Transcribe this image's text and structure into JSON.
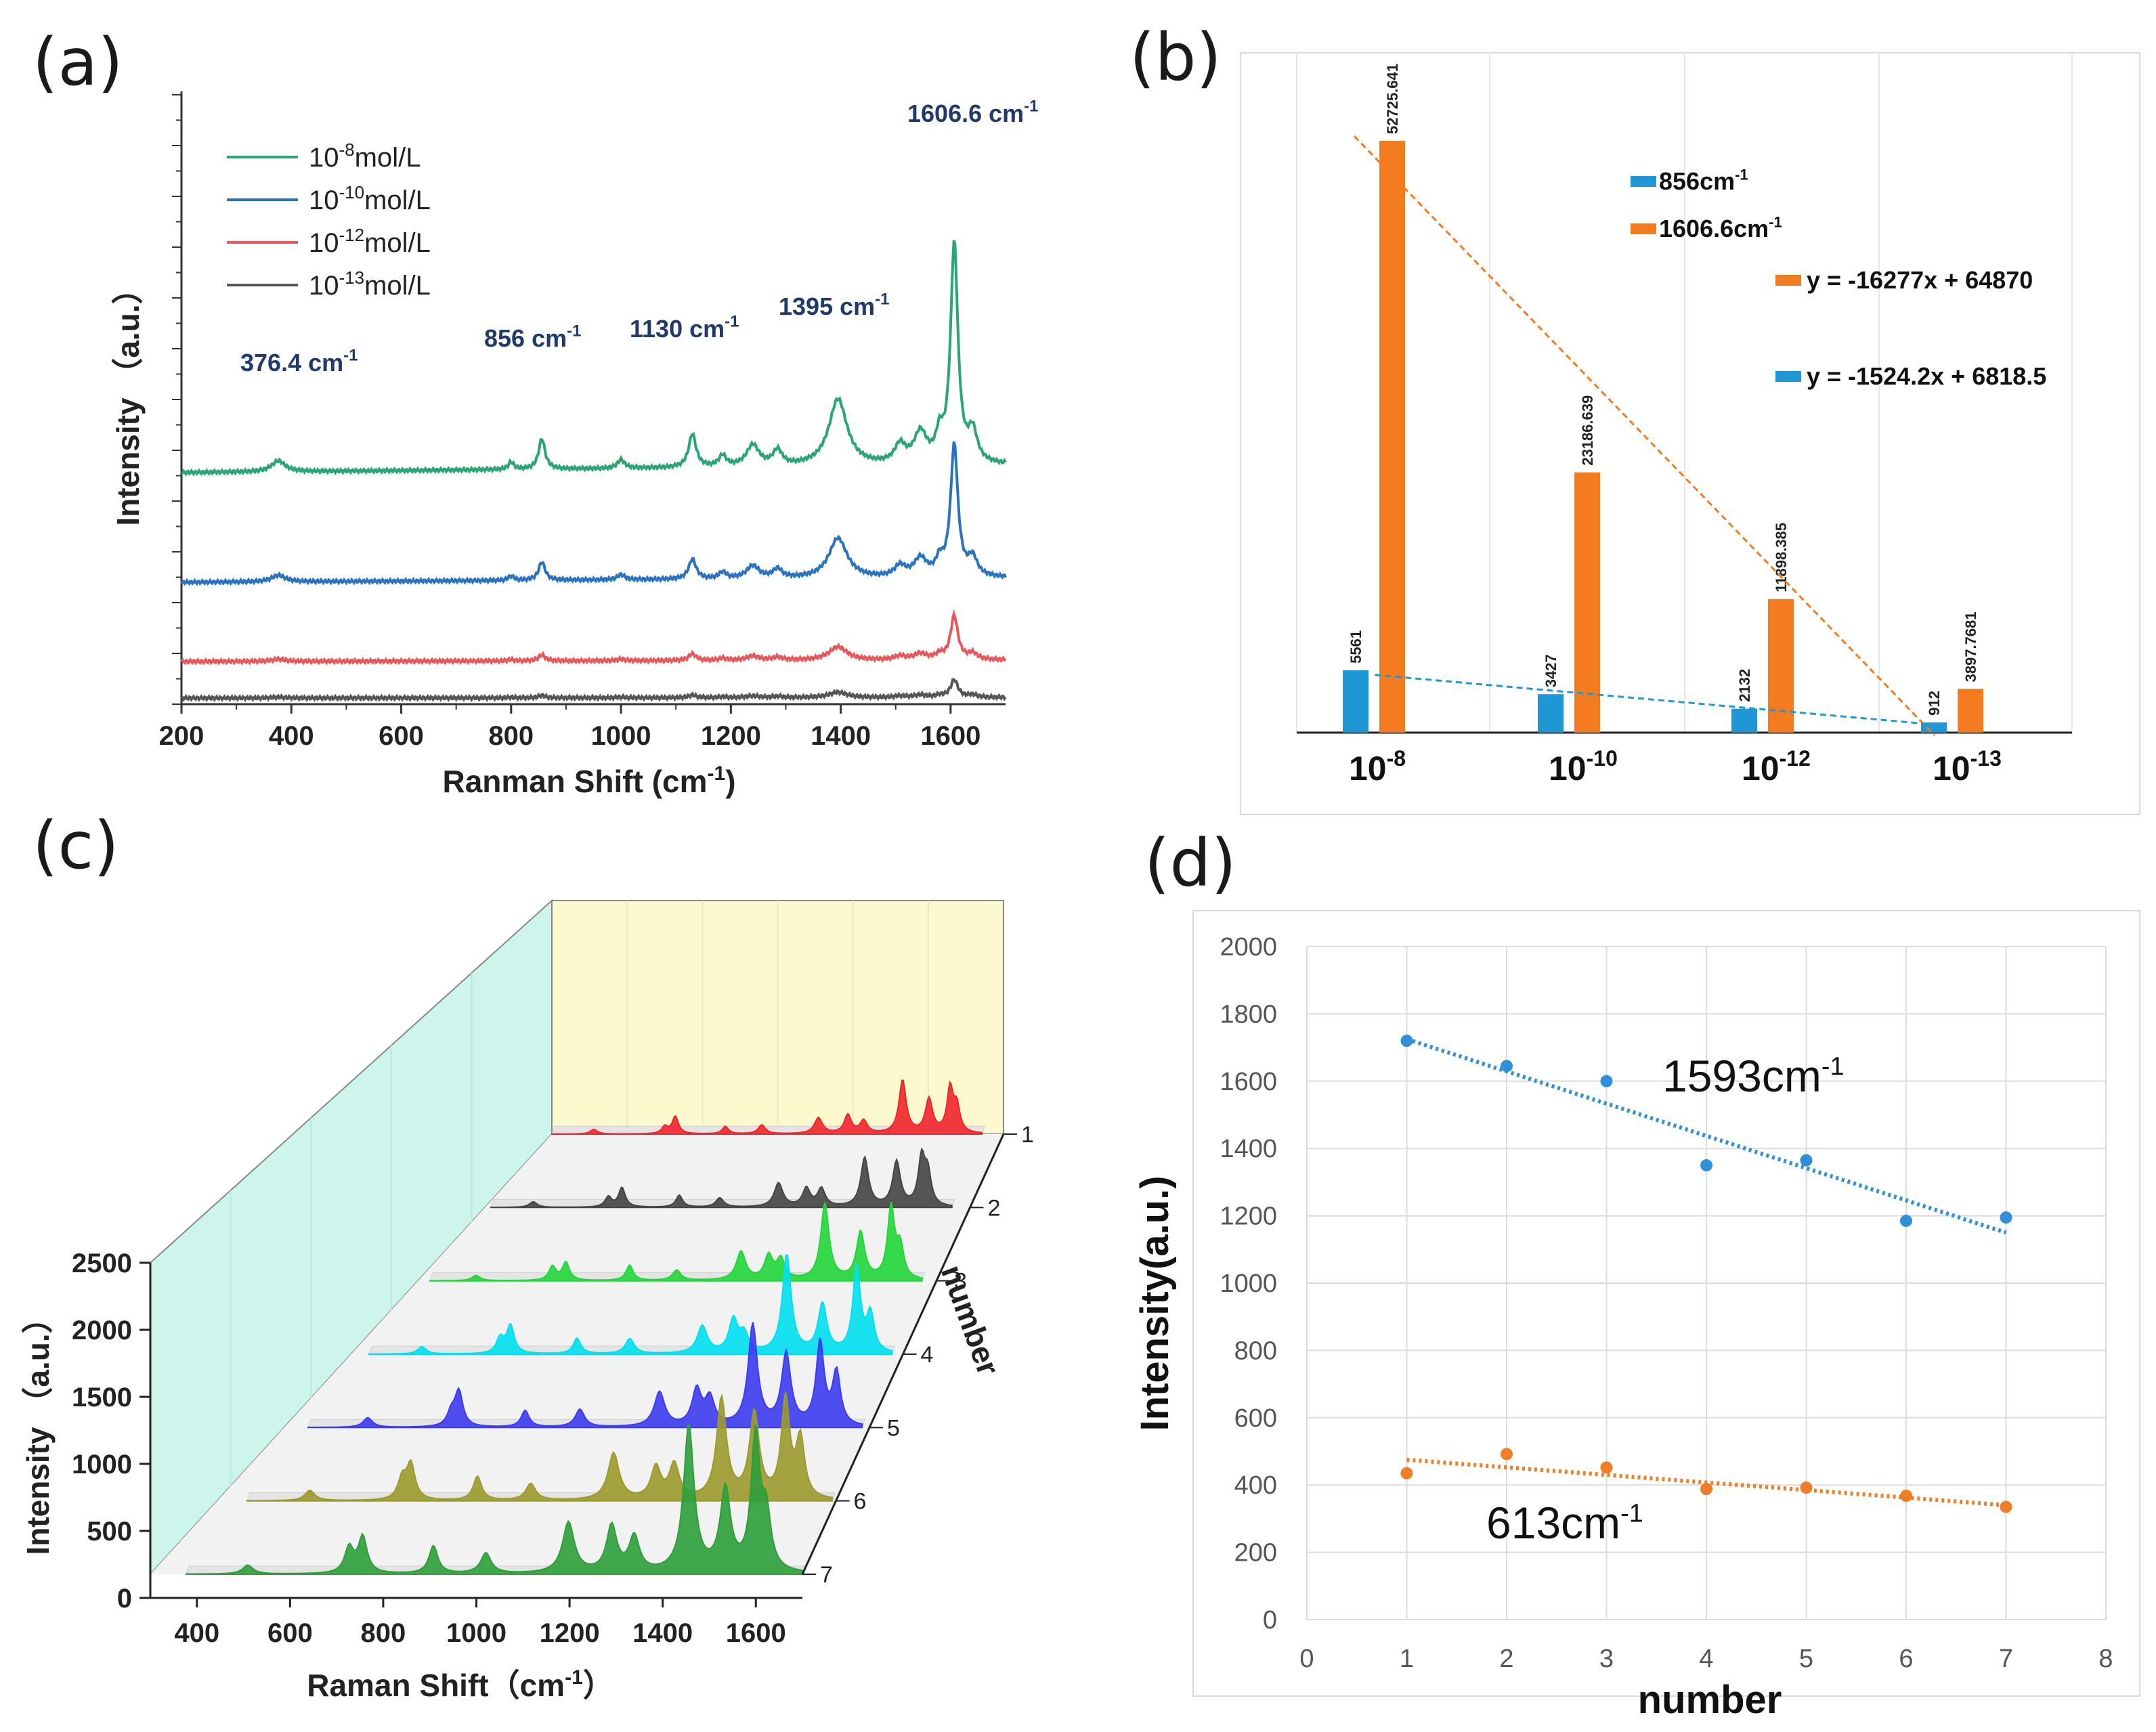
{
  "panel_labels": [
    "(a)",
    "(b)",
    "(c)",
    "(d)"
  ],
  "chart_data": [
    {
      "panel": "a",
      "type": "line",
      "xlabel": "Ranman Shift (cm",
      "xlabel_sup": "-1",
      "xlabel_end": ")",
      "ylabel": "Intensity （a.u.）",
      "xlim": [
        200,
        1700
      ],
      "xticks": [
        "200",
        "400",
        "600",
        "800",
        "1000",
        "1200",
        "1400",
        "1600"
      ],
      "series": [
        {
          "name": "10-8mol/L",
          "base": "10",
          "exp": "-8",
          "unit": "mol/L",
          "color": "#2aa574",
          "offset": 0.38,
          "scale": 1.0
        },
        {
          "name": "10-10mol/L",
          "base": "10",
          "exp": "-10",
          "unit": "mol/L",
          "color": "#2a73c2",
          "offset": 0.2,
          "scale": 0.6
        },
        {
          "name": "10-12mol/L",
          "base": "10",
          "exp": "-12",
          "unit": "mol/L",
          "color": "#e8585a",
          "offset": 0.07,
          "scale": 0.2
        },
        {
          "name": "10-13mol/L",
          "base": "10",
          "exp": "-13",
          "unit": "mol/L",
          "color": "#555555",
          "offset": 0.01,
          "scale": 0.08
        }
      ],
      "peaks_cm": [
        376.4,
        856,
        1130,
        1395,
        1606.6
      ],
      "annotations": [
        {
          "text": "376.4 cm",
          "sup": "-1"
        },
        {
          "text": "856 cm",
          "sup": "-1"
        },
        {
          "text": "1130 cm",
          "sup": "-1"
        },
        {
          "text": "1395 cm",
          "sup": "-1"
        },
        {
          "text": "1606.6 cm",
          "sup": "-1"
        }
      ]
    },
    {
      "panel": "b",
      "type": "bar",
      "categories": [
        {
          "base": "10",
          "exp": "-8"
        },
        {
          "base": "10",
          "exp": "-10"
        },
        {
          "base": "10",
          "exp": "-12"
        },
        {
          "base": "10",
          "exp": "-13"
        }
      ],
      "series": [
        {
          "name": "856cm",
          "sup": "-1",
          "color": "#1f97d4",
          "values": [
            5561,
            3427,
            2132,
            912
          ],
          "labels": [
            "5561",
            "3427",
            "2132",
            "912"
          ]
        },
        {
          "name": "1606.6cm",
          "sup": "-1",
          "color": "#f37b20",
          "values": [
            52725.641,
            23186.639,
            11898.385,
            3897.7681
          ],
          "labels": [
            "52725.641",
            "23186.639",
            "11898.385",
            "3897.7681"
          ]
        }
      ],
      "trendlines": [
        {
          "text": "y = -16277x + 64870",
          "color": "#f37b20",
          "slope": -16277,
          "intercept": 64870
        },
        {
          "text": "y = -1524.2x + 6818.5",
          "color": "#1f97d4",
          "slope": -1524.2,
          "intercept": 6818.5
        }
      ],
      "ylim": [
        0,
        55000
      ]
    },
    {
      "panel": "c",
      "type": "area",
      "xlabel": "Raman Shift（cm",
      "xlabel_sup": "-1",
      "xlabel_end": "）",
      "ylabel": "Intensity （a.u.）",
      "zlabel": "number",
      "xticks": [
        "400",
        "600",
        "800",
        "1000",
        "1200",
        "1400",
        "1600"
      ],
      "yticks": [
        "0",
        "500",
        "1000",
        "1500",
        "2000",
        "2500"
      ],
      "ylim": [
        0,
        2500
      ],
      "numbers": [
        "1",
        "2",
        "3",
        "4",
        "5",
        "6",
        "7"
      ],
      "colors": [
        "#2e9e3a",
        "#9c9a2c",
        "#3b3bf0",
        "#00e0ee",
        "#22d63a",
        "#444444",
        "#f0252c"
      ]
    },
    {
      "panel": "d",
      "type": "scatter",
      "xlabel": "number",
      "ylabel": "Intensity(a.u.)",
      "xlim": [
        0,
        8
      ],
      "ylim": [
        0,
        2000
      ],
      "xticks": [
        "0",
        "1",
        "2",
        "3",
        "4",
        "5",
        "6",
        "7",
        "8"
      ],
      "yticks": [
        "0",
        "200",
        "400",
        "600",
        "800",
        "1000",
        "1200",
        "1400",
        "1600",
        "1800",
        "2000"
      ],
      "series": [
        {
          "name": "1593cm",
          "sup": "-1",
          "color": "#2f8fd8",
          "x": [
            1,
            2,
            3,
            4,
            5,
            6,
            7
          ],
          "y": [
            1720,
            1645,
            1600,
            1350,
            1365,
            1185,
            1195
          ],
          "trend": [
            1725,
            1150
          ]
        },
        {
          "name": "613cm",
          "sup": "-1",
          "color": "#f07e26",
          "x": [
            1,
            2,
            3,
            4,
            5,
            6,
            7
          ],
          "y": [
            435,
            492,
            452,
            388,
            392,
            368,
            335
          ],
          "trend": [
            475,
            340
          ]
        }
      ]
    }
  ]
}
